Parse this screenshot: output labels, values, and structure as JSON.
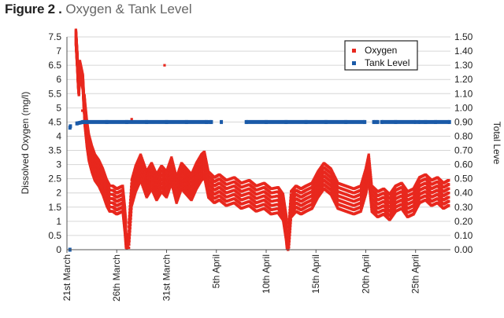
{
  "figure": {
    "label": "Figure 2 .",
    "title": "Oxygen & Tank Level"
  },
  "chart_data": {
    "type": "scatter",
    "title": "Oxygen & Tank Level",
    "ylabel": "Dissolved Oxygen (mg/l)",
    "y2label": "Total Leve",
    "ylim": [
      0,
      7.5
    ],
    "y2lim": [
      0,
      1.5
    ],
    "y_ticks": [
      "0",
      "0.5",
      "1",
      "1.5",
      "2",
      "2.5",
      "3",
      "3.5",
      "4",
      "4.5",
      "5",
      "5.5",
      "6",
      "6.5",
      "7",
      "7.5"
    ],
    "y2_ticks": [
      "0.00",
      "0.10",
      "0.20",
      "0.30",
      "0.40",
      "0.50",
      "0.60",
      "0.70",
      "0.80",
      "0.90",
      "1.00",
      "1.10",
      "1.20",
      "1.30",
      "1.40",
      "1.50"
    ],
    "xlim": [
      0,
      38.5
    ],
    "x_ticks": [
      {
        "label": "21st March",
        "day": 0
      },
      {
        "label": "26th March",
        "day": 5
      },
      {
        "label": "31st March",
        "day": 10
      },
      {
        "label": "5th April",
        "day": 15
      },
      {
        "label": "10th April",
        "day": 20
      },
      {
        "label": "15th April",
        "day": 25
      },
      {
        "label": "20th April",
        "day": 30
      },
      {
        "label": "25th April",
        "day": 35
      }
    ],
    "grid": true,
    "legend_position": "top-right",
    "series": [
      {
        "name": "Oxygen",
        "color": "#e8281e",
        "axis": "left",
        "points": [
          [
            0.9,
            7.5
          ],
          [
            0.95,
            7.2
          ],
          [
            1.0,
            6.9
          ],
          [
            1.05,
            6.6
          ],
          [
            1.1,
            6.2
          ],
          [
            1.15,
            5.9
          ],
          [
            1.2,
            5.7
          ],
          [
            1.3,
            6.4
          ],
          [
            1.6,
            5.9
          ],
          [
            1.7,
            5.2
          ],
          [
            1.8,
            4.8
          ],
          [
            2.0,
            4.1
          ],
          [
            2.2,
            3.6
          ],
          [
            2.5,
            3.2
          ],
          [
            2.8,
            2.9
          ],
          [
            3.2,
            2.7
          ],
          [
            3.6,
            2.4
          ],
          [
            4.0,
            2.0
          ],
          [
            4.3,
            1.8
          ],
          [
            4.6,
            1.8
          ],
          [
            5.0,
            1.7
          ],
          [
            5.3,
            1.75
          ],
          [
            5.6,
            1.8
          ],
          [
            5.8,
            1.1
          ],
          [
            6.0,
            0.2
          ],
          [
            6.2,
            0.4
          ],
          [
            6.5,
            2.0
          ],
          [
            6.9,
            2.5
          ],
          [
            7.4,
            2.9
          ],
          [
            8.0,
            2.3
          ],
          [
            8.5,
            2.6
          ],
          [
            9.0,
            2.2
          ],
          [
            9.5,
            2.5
          ],
          [
            10.0,
            2.3
          ],
          [
            10.5,
            2.8
          ],
          [
            11.0,
            2.1
          ],
          [
            11.5,
            2.6
          ],
          [
            12.0,
            2.4
          ],
          [
            12.5,
            2.2
          ],
          [
            13.0,
            2.6
          ],
          [
            13.5,
            2.9
          ],
          [
            13.8,
            3.0
          ],
          [
            14.2,
            2.3
          ],
          [
            14.8,
            2.1
          ],
          [
            15.3,
            2.2
          ],
          [
            16.0,
            2.0
          ],
          [
            16.8,
            2.1
          ],
          [
            17.5,
            1.9
          ],
          [
            18.3,
            2.0
          ],
          [
            19.0,
            1.8
          ],
          [
            19.8,
            1.9
          ],
          [
            20.5,
            1.7
          ],
          [
            21.2,
            1.75
          ],
          [
            21.7,
            1.5
          ],
          [
            22.0,
            0.8
          ],
          [
            22.2,
            0.1
          ],
          [
            22.5,
            1.6
          ],
          [
            23.0,
            1.8
          ],
          [
            23.5,
            1.7
          ],
          [
            24.0,
            1.8
          ],
          [
            24.6,
            1.9
          ],
          [
            25.2,
            2.3
          ],
          [
            25.8,
            2.6
          ],
          [
            26.5,
            2.4
          ],
          [
            27.2,
            1.9
          ],
          [
            28.0,
            1.8
          ],
          [
            28.8,
            1.7
          ],
          [
            29.5,
            1.8
          ],
          [
            30.0,
            2.4
          ],
          [
            30.3,
            2.9
          ],
          [
            30.6,
            1.8
          ],
          [
            31.2,
            1.6
          ],
          [
            31.8,
            1.7
          ],
          [
            32.4,
            1.5
          ],
          [
            33.0,
            1.8
          ],
          [
            33.6,
            1.9
          ],
          [
            34.2,
            1.6
          ],
          [
            34.8,
            1.7
          ],
          [
            35.4,
            2.1
          ],
          [
            36.0,
            2.2
          ],
          [
            36.6,
            2.0
          ],
          [
            37.2,
            2.1
          ],
          [
            37.8,
            1.9
          ],
          [
            38.3,
            2.0
          ]
        ]
      },
      {
        "name": "Tank Level",
        "color": "#1a5aa8",
        "axis": "right",
        "points": [
          [
            0.3,
            0.0
          ],
          [
            0.3,
            0.86
          ],
          [
            0.35,
            0.87
          ],
          [
            1.0,
            0.89
          ],
          [
            1.6,
            0.9
          ],
          [
            2.0,
            0.9
          ],
          [
            4.0,
            0.9
          ],
          [
            6.0,
            0.9
          ],
          [
            8.0,
            0.9
          ],
          [
            10.0,
            0.9
          ],
          [
            12.0,
            0.9
          ],
          [
            14.0,
            0.9
          ],
          [
            14.5,
            0.9
          ],
          [
            15.5,
            0.9
          ],
          [
            18.0,
            0.9
          ],
          [
            20.0,
            0.9
          ],
          [
            22.0,
            0.9
          ],
          [
            24.0,
            0.9
          ],
          [
            26.0,
            0.9
          ],
          [
            28.0,
            0.9
          ],
          [
            29.9,
            0.9
          ],
          [
            30.8,
            0.9
          ],
          [
            31.2,
            0.9
          ],
          [
            31.6,
            0.9
          ],
          [
            33.0,
            0.9
          ],
          [
            35.0,
            0.9
          ],
          [
            35.3,
            0.9
          ],
          [
            36.0,
            0.9
          ],
          [
            37.0,
            0.9
          ],
          [
            38.4,
            0.9
          ]
        ]
      }
    ]
  }
}
